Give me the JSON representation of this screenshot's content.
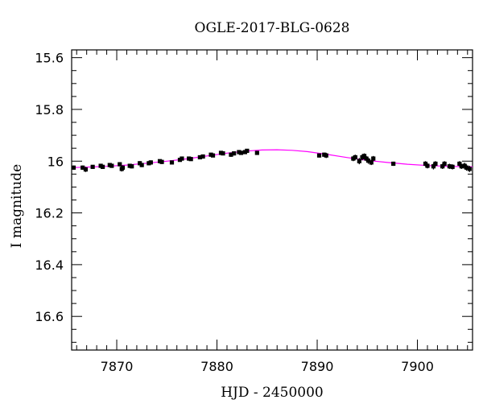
{
  "chart_data": {
    "type": "scatter",
    "title": "OGLE-2017-BLG-0628",
    "xlabel": "HJD - 2450000",
    "ylabel": "I magnitude",
    "xlim": [
      7865.5,
      7905.5
    ],
    "ylim": [
      15.57,
      16.73
    ],
    "y_inverted": true,
    "x_ticks": [
      7870,
      7880,
      7890,
      7900
    ],
    "x_ticklabels": [
      "7870",
      "7880",
      "7890",
      "7900"
    ],
    "y_ticks": [
      15.6,
      15.8,
      16.0,
      16.2,
      16.4,
      16.6
    ],
    "y_ticklabels": [
      "15.6",
      "15.8",
      "16",
      "16.2",
      "16.4",
      "16.6"
    ],
    "grid": false,
    "colors": {
      "data": "#000000",
      "model": "#ff00ff",
      "frame": "#000000"
    },
    "model": {
      "x": [
        7865.5,
        7867,
        7869,
        7871,
        7873,
        7875,
        7877,
        7879,
        7881,
        7883,
        7884.5,
        7886,
        7887.5,
        7889,
        7891,
        7893,
        7895,
        7897,
        7899,
        7901,
        7903,
        7905.5
      ],
      "y": [
        16.025,
        16.023,
        16.02,
        16.015,
        16.008,
        16.0,
        15.991,
        15.98,
        15.969,
        15.961,
        15.957,
        15.956,
        15.958,
        15.963,
        15.974,
        15.986,
        15.997,
        16.005,
        16.012,
        16.017,
        16.02,
        16.022
      ]
    },
    "series": [
      {
        "x": [
          7865.7,
          7866.6,
          7866.9,
          7867.6,
          7868.4,
          7868.6,
          7869.3,
          7869.5,
          7870.3,
          7870.5,
          7870.6,
          7871.3,
          7871.5,
          7872.3,
          7872.5,
          7873.2,
          7873.4,
          7874.3,
          7874.5,
          7875.5,
          7876.3,
          7876.5,
          7877.2,
          7877.4,
          7878.3,
          7878.6,
          7879.4,
          7879.6,
          7880.4,
          7880.6,
          7881.4,
          7881.7,
          7882.2,
          7882.4,
          7882.8,
          7883.0,
          7884.0,
          7890.2,
          7890.7,
          7890.9,
          7893.6,
          7893.8,
          7894.2,
          7894.5,
          7894.7,
          7894.9,
          7895.1,
          7895.4,
          7895.6,
          7897.6,
          7900.8,
          7901.0,
          7901.6,
          7901.8,
          7902.5,
          7902.7,
          7903.2,
          7903.5,
          7904.2,
          7904.4,
          7904.7,
          7904.9,
          7905.2
        ],
        "y": [
          16.025,
          16.025,
          16.032,
          16.022,
          16.018,
          16.022,
          16.015,
          16.018,
          16.012,
          16.03,
          16.025,
          16.018,
          16.02,
          16.008,
          16.015,
          16.008,
          16.005,
          16.0,
          16.003,
          16.005,
          15.995,
          15.99,
          15.99,
          15.992,
          15.985,
          15.982,
          15.975,
          15.978,
          15.968,
          15.97,
          15.975,
          15.97,
          15.965,
          15.968,
          15.965,
          15.96,
          15.968,
          15.978,
          15.975,
          15.978,
          15.99,
          15.985,
          16.0,
          15.985,
          15.98,
          15.99,
          15.998,
          16.005,
          15.99,
          16.01,
          16.01,
          16.018,
          16.02,
          16.01,
          16.02,
          16.01,
          16.02,
          16.022,
          16.01,
          16.02,
          16.018,
          16.025,
          16.03
        ],
        "err": [
          0.008,
          0.008,
          0.01,
          0.007,
          0.008,
          0.008,
          0.008,
          0.008,
          0.008,
          0.01,
          0.009,
          0.008,
          0.008,
          0.008,
          0.008,
          0.008,
          0.008,
          0.007,
          0.008,
          0.007,
          0.007,
          0.007,
          0.007,
          0.007,
          0.007,
          0.007,
          0.007,
          0.007,
          0.007,
          0.007,
          0.008,
          0.008,
          0.007,
          0.007,
          0.007,
          0.007,
          0.007,
          0.008,
          0.008,
          0.01,
          0.01,
          0.01,
          0.012,
          0.012,
          0.01,
          0.01,
          0.012,
          0.01,
          0.01,
          0.008,
          0.01,
          0.01,
          0.012,
          0.01,
          0.01,
          0.01,
          0.01,
          0.01,
          0.01,
          0.01,
          0.012,
          0.012,
          0.012
        ]
      }
    ]
  }
}
